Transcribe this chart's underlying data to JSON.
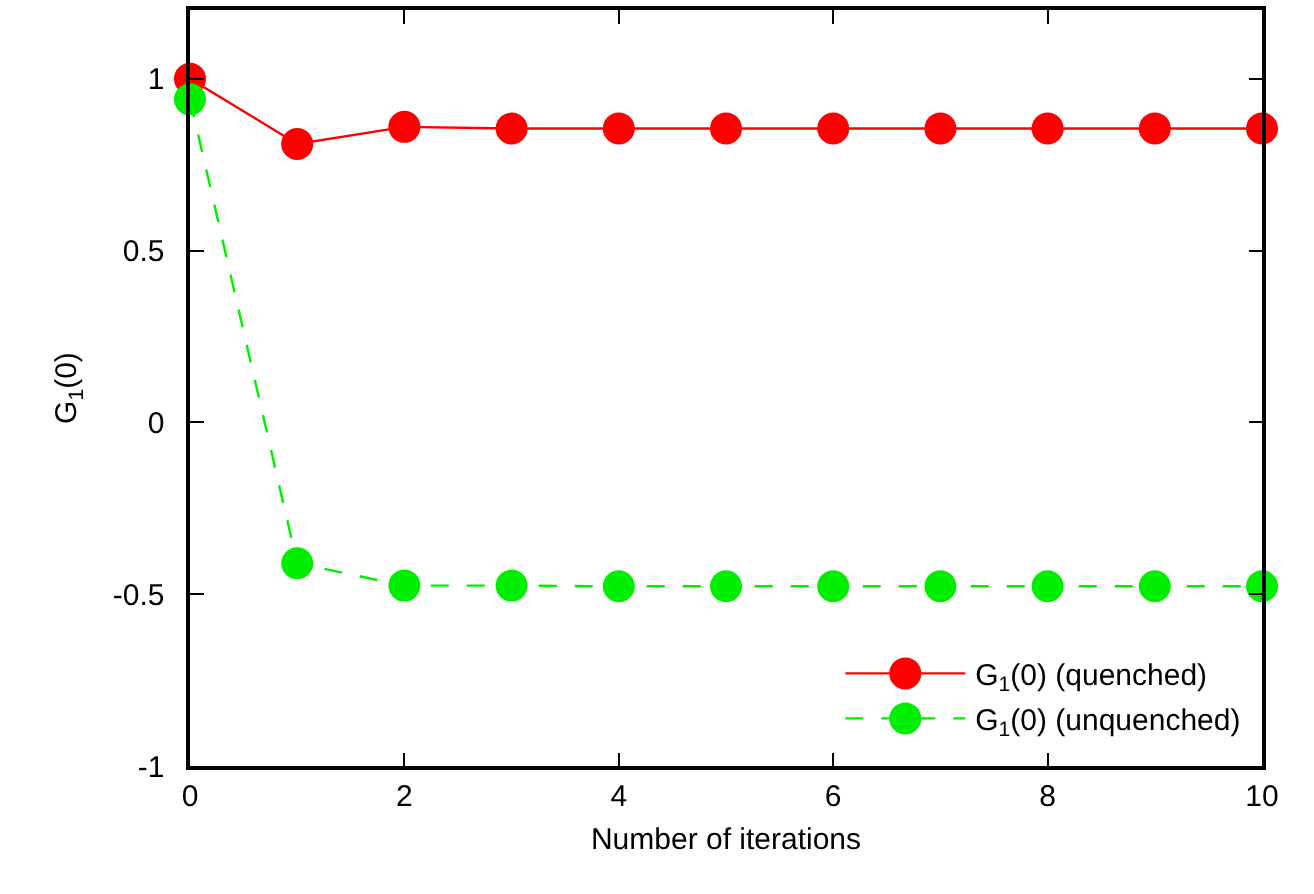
{
  "chart_data": {
    "type": "line",
    "xlabel": "Number of iterations",
    "ylabel": "G$_{1}$(0)",
    "x": [
      0,
      1,
      2,
      3,
      4,
      5,
      6,
      7,
      8,
      9,
      10
    ],
    "series": [
      {
        "name": "G$_{1}$(0) (quenched)",
        "color": "#ff0000",
        "line_style": "solid",
        "values": [
          1,
          0.81,
          0.86,
          0.855,
          0.855,
          0.855,
          0.855,
          0.855,
          0.855,
          0.855,
          0.855
        ]
      },
      {
        "name": "G$_{1}$(0) (unquenched)",
        "color": "#00ee00",
        "line_style": "dashed",
        "values": [
          0.94,
          -0.41,
          -0.475,
          -0.475,
          -0.477,
          -0.477,
          -0.477,
          -0.477,
          -0.477,
          -0.477,
          -0.477
        ]
      }
    ],
    "xlim": [
      0,
      10
    ],
    "xticks": [
      0,
      2,
      4,
      6,
      8,
      10
    ],
    "ylim": [
      -1,
      1.2
    ],
    "yticks": [
      -1,
      {
        "value": -0.5,
        "label": "-0.5"
      },
      0,
      {
        "value": 0.5,
        "label": "0.5"
      },
      1
    ],
    "grid": false,
    "legend": "bottom right",
    "marker": "circle"
  }
}
